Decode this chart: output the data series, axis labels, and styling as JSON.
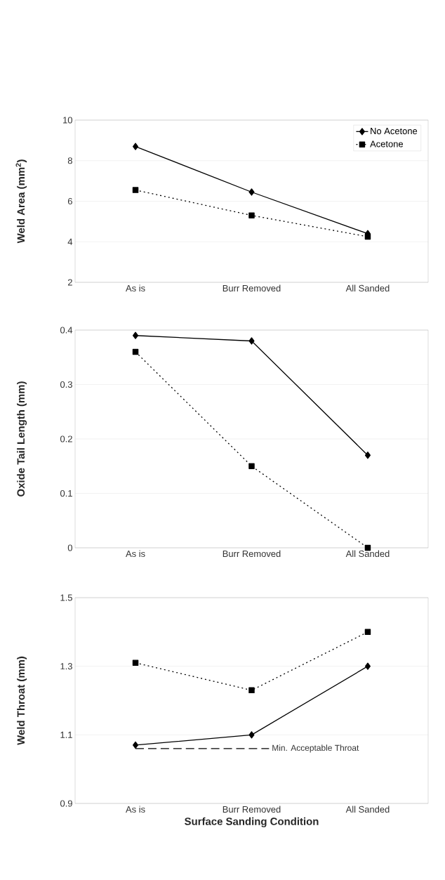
{
  "chart_data": [
    {
      "type": "line",
      "ylabel": "Weld Area (mm$^{2}$)",
      "categories": [
        "As is",
        "Burr Removed",
        "All Sanded"
      ],
      "ylim": [
        2,
        10
      ],
      "yticks": [
        2,
        4,
        6,
        8,
        10
      ],
      "grid": "y",
      "legend": "top right",
      "series": [
        {
          "name": "No Acetone",
          "color": "#000000",
          "values": [
            8.7,
            6.45,
            4.4
          ],
          "marker": "diamond",
          "line_style": "solid"
        },
        {
          "name": "Acetone",
          "color": "#000000",
          "values": [
            6.55,
            5.3,
            4.25
          ],
          "marker": "square",
          "line_style": "dotted"
        }
      ]
    },
    {
      "type": "line",
      "ylabel": "Oxide Tail Length (mm)",
      "categories": [
        "As is",
        "Burr Removed",
        "All Sanded"
      ],
      "ylim": [
        0,
        0.4
      ],
      "yticks": [
        0,
        0.1,
        0.2,
        0.3,
        0.4
      ],
      "grid": "y",
      "series": [
        {
          "color": "#000000",
          "values": [
            0.39,
            0.38,
            0.17
          ],
          "marker": "diamond",
          "line_style": "solid"
        },
        {
          "color": "#000000",
          "values": [
            0.36,
            0.15,
            0.0
          ],
          "marker": "square",
          "line_style": "dotted"
        }
      ]
    },
    {
      "type": "line",
      "ylabel": "Weld Throat (mm)",
      "xlabel": "Surface Sanding Condition",
      "categories": [
        "As is",
        "Burr Removed",
        "All Sanded"
      ],
      "ylim": [
        0.9,
        1.5
      ],
      "yticks": [
        0.9,
        1.1,
        1.3,
        1.5
      ],
      "grid": "y",
      "ref_lines": [
        {
          "axis": "y",
          "value": 1.06,
          "label": "Min. Acceptable Throat",
          "line_style": "dashed",
          "color": "#000000"
        }
      ],
      "series": [
        {
          "color": "#000000",
          "values": [
            1.07,
            1.1,
            1.3
          ],
          "marker": "diamond",
          "line_style": "solid"
        },
        {
          "color": "#000000",
          "values": [
            1.31,
            1.23,
            1.4
          ],
          "marker": "square",
          "line_style": "dotted"
        }
      ]
    }
  ]
}
